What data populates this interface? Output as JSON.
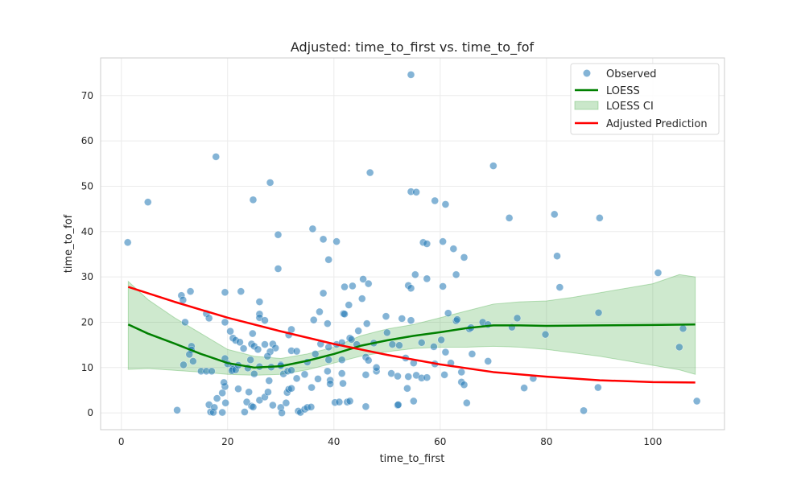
{
  "chart_data": {
    "type": "scatter",
    "title": "Adjusted: time_to_first vs. time_to_fof",
    "xlabel": "time_to_first",
    "ylabel": "time_to_fof",
    "xlim": [
      -3.9,
      113.5
    ],
    "ylim": [
      -3.7,
      78.3
    ],
    "xticks": [
      0,
      20,
      40,
      60,
      80,
      100
    ],
    "yticks": [
      0,
      10,
      20,
      30,
      40,
      50,
      60,
      70
    ],
    "grid": true,
    "legend_position": "top-right",
    "colors": {
      "observed": "#1f77b4",
      "loess": "#008000",
      "ci": "#2ca02c",
      "adjusted": "#ff0000"
    },
    "legend": [
      "Observed",
      "LOESS",
      "LOESS CI",
      "Adjusted Prediction"
    ],
    "observed": [
      [
        54.5,
        74.6
      ],
      [
        17.8,
        56.5
      ],
      [
        70,
        54.5
      ],
      [
        46.8,
        53
      ],
      [
        28,
        50.8
      ],
      [
        5,
        46.5
      ],
      [
        24.8,
        47
      ],
      [
        54.5,
        48.8
      ],
      [
        55.5,
        48.7
      ],
      [
        59,
        46.8
      ],
      [
        61,
        46
      ],
      [
        73,
        43
      ],
      [
        81.5,
        43.8
      ],
      [
        90,
        43
      ],
      [
        1.2,
        37.6
      ],
      [
        36,
        40.6
      ],
      [
        29.5,
        39.3
      ],
      [
        38,
        38.3
      ],
      [
        40.5,
        37.8
      ],
      [
        56.8,
        37.6
      ],
      [
        57.5,
        37.3
      ],
      [
        60.5,
        37.8
      ],
      [
        62.5,
        36.2
      ],
      [
        64.5,
        34.3
      ],
      [
        82,
        34.6
      ],
      [
        39,
        33.8
      ],
      [
        29.5,
        31.8
      ],
      [
        101,
        30.9
      ],
      [
        63,
        30.5
      ],
      [
        55.3,
        30.5
      ],
      [
        45.5,
        29.5
      ],
      [
        57.5,
        29.6
      ],
      [
        46.5,
        28.5
      ],
      [
        42,
        27.8
      ],
      [
        43.5,
        28
      ],
      [
        54,
        28.1
      ],
      [
        54.5,
        27.5
      ],
      [
        60.5,
        27.9
      ],
      [
        82.5,
        27.7
      ],
      [
        19.5,
        26.6
      ],
      [
        22.5,
        26.8
      ],
      [
        13,
        26.8
      ],
      [
        11.3,
        25.9
      ],
      [
        11.6,
        24.9
      ],
      [
        26,
        24.5
      ],
      [
        38,
        26.4
      ],
      [
        45.3,
        25.2
      ],
      [
        42.8,
        23.8
      ],
      [
        37.3,
        22.3
      ],
      [
        16,
        21.9
      ],
      [
        16.5,
        20.9
      ],
      [
        26,
        21.8
      ],
      [
        26,
        21
      ],
      [
        12,
        20
      ],
      [
        19.5,
        20
      ],
      [
        27,
        20.4
      ],
      [
        36.2,
        20.5
      ],
      [
        38.8,
        19.7
      ],
      [
        46.2,
        19.7
      ],
      [
        49.8,
        21.3
      ],
      [
        52.8,
        20.8
      ],
      [
        54.5,
        20.4
      ],
      [
        61.5,
        22
      ],
      [
        63,
        20.3
      ],
      [
        63.2,
        20.6
      ],
      [
        68,
        20
      ],
      [
        69,
        19.5
      ],
      [
        74.5,
        20.9
      ],
      [
        73.5,
        18.9
      ],
      [
        79.8,
        17.3
      ],
      [
        65.5,
        18.5
      ],
      [
        65.8,
        18.8
      ],
      [
        89.8,
        22.1
      ],
      [
        105.7,
        18.6
      ],
      [
        105,
        14.5
      ],
      [
        32,
        18.4
      ],
      [
        31.5,
        17.2
      ],
      [
        41.8,
        21.9
      ],
      [
        42,
        21.8
      ],
      [
        20.5,
        18
      ],
      [
        21,
        16.5
      ],
      [
        21.5,
        16
      ],
      [
        22.3,
        15.6
      ],
      [
        24.7,
        17.5
      ],
      [
        24.5,
        15.2
      ],
      [
        25,
        14.7
      ],
      [
        25.7,
        14
      ],
      [
        23,
        14.2
      ],
      [
        27,
        15.1
      ],
      [
        28.5,
        15.2
      ],
      [
        29,
        14.3
      ],
      [
        28,
        13.5
      ],
      [
        27.5,
        12.5
      ],
      [
        32,
        13.7
      ],
      [
        33,
        13.6
      ],
      [
        36.5,
        13
      ],
      [
        35,
        11.2
      ],
      [
        37.5,
        15.2
      ],
      [
        39,
        14.5
      ],
      [
        40.5,
        15.1
      ],
      [
        41.5,
        15.5
      ],
      [
        43,
        16.5
      ],
      [
        43.3,
        16.2
      ],
      [
        44.3,
        15.1
      ],
      [
        44.6,
        18.1
      ],
      [
        47.5,
        15.4
      ],
      [
        50,
        17.7
      ],
      [
        51,
        15.1
      ],
      [
        52.3,
        14.9
      ],
      [
        53.5,
        12.1
      ],
      [
        58.8,
        14.6
      ],
      [
        60.2,
        16.1
      ],
      [
        62,
        11
      ],
      [
        61,
        13.4
      ],
      [
        66,
        13
      ],
      [
        69,
        11.4
      ],
      [
        56.5,
        15.5
      ],
      [
        46,
        12.3
      ],
      [
        46.5,
        11.6
      ],
      [
        39,
        11.7
      ],
      [
        41.5,
        11.7
      ],
      [
        19.5,
        12
      ],
      [
        13.2,
        14.7
      ],
      [
        13.2,
        13.9
      ],
      [
        12.8,
        12.9
      ],
      [
        13.5,
        11.4
      ],
      [
        11.7,
        10.6
      ],
      [
        15,
        9.2
      ],
      [
        16,
        9.2
      ],
      [
        17,
        9.2
      ],
      [
        20,
        10.8
      ],
      [
        21,
        10.2
      ],
      [
        21,
        9.6
      ],
      [
        20.8,
        9.3
      ],
      [
        21.5,
        9.5
      ],
      [
        22,
        10.5
      ],
      [
        23.8,
        9.9
      ],
      [
        24.3,
        11.7
      ],
      [
        25,
        8.6
      ],
      [
        26,
        10.2
      ],
      [
        28.2,
        10.1
      ],
      [
        30,
        10.6
      ],
      [
        30,
        10.4
      ],
      [
        30.5,
        8.6
      ],
      [
        31.3,
        9.2
      ],
      [
        32,
        9.4
      ],
      [
        34.5,
        8.5
      ],
      [
        38.8,
        9.2
      ],
      [
        41.5,
        8.7
      ],
      [
        46,
        8.4
      ],
      [
        48,
        9.2
      ],
      [
        48,
        10
      ],
      [
        50.8,
        8.7
      ],
      [
        52,
        8.1
      ],
      [
        54,
        8
      ],
      [
        55,
        11
      ],
      [
        55.5,
        8.3
      ],
      [
        56.5,
        7.7
      ],
      [
        57.5,
        7.8
      ],
      [
        59,
        10.8
      ],
      [
        60.8,
        8.4
      ],
      [
        64,
        9
      ],
      [
        64,
        6.8
      ],
      [
        64.5,
        6.2
      ],
      [
        77.5,
        7.6
      ],
      [
        75.8,
        5.5
      ],
      [
        89.7,
        5.6
      ],
      [
        108.3,
        2.6
      ],
      [
        87,
        0.5
      ],
      [
        10.5,
        0.6
      ],
      [
        16.5,
        1.8
      ],
      [
        16.8,
        0.2
      ],
      [
        17.3,
        0.1
      ],
      [
        17.5,
        1.2
      ],
      [
        18,
        3.2
      ],
      [
        19,
        4.4
      ],
      [
        19.5,
        5.8
      ],
      [
        19.3,
        6.7
      ],
      [
        19,
        0.1
      ],
      [
        19.6,
        2.2
      ],
      [
        22,
        5.3
      ],
      [
        23.2,
        0.2
      ],
      [
        23.6,
        2.4
      ],
      [
        24,
        4.6
      ],
      [
        24.5,
        1.5
      ],
      [
        24.8,
        1.3
      ],
      [
        26,
        2.8
      ],
      [
        27,
        3.5
      ],
      [
        27.6,
        4.6
      ],
      [
        27.8,
        7.1
      ],
      [
        28.5,
        1.7
      ],
      [
        30,
        1.2
      ],
      [
        30.2,
        0
      ],
      [
        31,
        2.2
      ],
      [
        31.2,
        4.5
      ],
      [
        31.5,
        5.2
      ],
      [
        32,
        5.4
      ],
      [
        33,
        7.6
      ],
      [
        33.3,
        0.4
      ],
      [
        33.7,
        0.1
      ],
      [
        34.5,
        0.8
      ],
      [
        35,
        1.2
      ],
      [
        35.7,
        1.3
      ],
      [
        35.8,
        5.6
      ],
      [
        37,
        7.5
      ],
      [
        39.3,
        7.2
      ],
      [
        39.3,
        6.4
      ],
      [
        40.2,
        2.3
      ],
      [
        41,
        2.4
      ],
      [
        41.7,
        6.5
      ],
      [
        42.5,
        2.4
      ],
      [
        43,
        2.6
      ],
      [
        46,
        1.4
      ],
      [
        52,
        1.7
      ],
      [
        52.1,
        1.8
      ],
      [
        53.8,
        5.4
      ],
      [
        55,
        2.6
      ],
      [
        65,
        2.2
      ]
    ],
    "loess": [
      [
        1.3,
        19.5
      ],
      [
        5,
        17.5
      ],
      [
        10,
        15.3
      ],
      [
        15,
        13
      ],
      [
        20,
        11
      ],
      [
        25,
        10
      ],
      [
        30,
        10.3
      ],
      [
        35,
        11.5
      ],
      [
        40,
        13
      ],
      [
        45,
        14.8
      ],
      [
        50,
        16
      ],
      [
        55,
        17
      ],
      [
        60,
        17.8
      ],
      [
        65,
        18.7
      ],
      [
        70,
        19.3
      ],
      [
        75,
        19.3
      ],
      [
        80,
        19.2
      ],
      [
        90,
        19.3
      ],
      [
        100,
        19.4
      ],
      [
        108,
        19.5
      ]
    ],
    "loess_ci_upper": [
      [
        1.3,
        29
      ],
      [
        5,
        25
      ],
      [
        10,
        21
      ],
      [
        15,
        17.5
      ],
      [
        20,
        14
      ],
      [
        25,
        12.5
      ],
      [
        30,
        12
      ],
      [
        35,
        13
      ],
      [
        40,
        14.5
      ],
      [
        45,
        17
      ],
      [
        50,
        18.5
      ],
      [
        55,
        19.5
      ],
      [
        60,
        21
      ],
      [
        65,
        22.5
      ],
      [
        70,
        24
      ],
      [
        75,
        24.5
      ],
      [
        80,
        24.7
      ],
      [
        85,
        25.5
      ],
      [
        90,
        26.5
      ],
      [
        95,
        27.5
      ],
      [
        100,
        28.5
      ],
      [
        105,
        30.5
      ],
      [
        108,
        30
      ]
    ],
    "loess_ci_lower": [
      [
        1.3,
        9.6
      ],
      [
        5,
        9.8
      ],
      [
        10,
        9.4
      ],
      [
        15,
        9
      ],
      [
        20,
        8.5
      ],
      [
        25,
        8.3
      ],
      [
        30,
        8.5
      ],
      [
        35,
        9.5
      ],
      [
        40,
        11
      ],
      [
        45,
        12.5
      ],
      [
        50,
        13.5
      ],
      [
        55,
        14.2
      ],
      [
        60,
        14.5
      ],
      [
        65,
        14.5
      ],
      [
        70,
        14.7
      ],
      [
        75,
        14.5
      ],
      [
        80,
        14
      ],
      [
        90,
        12.5
      ],
      [
        100,
        10.5
      ],
      [
        105,
        9.5
      ],
      [
        108,
        8.5
      ]
    ],
    "adjusted_prediction": [
      [
        1.3,
        27.8
      ],
      [
        10,
        24.5
      ],
      [
        20,
        21
      ],
      [
        30,
        18
      ],
      [
        40,
        15.2
      ],
      [
        50,
        12.8
      ],
      [
        60,
        10.7
      ],
      [
        70,
        9
      ],
      [
        80,
        8
      ],
      [
        90,
        7.2
      ],
      [
        100,
        6.8
      ],
      [
        108,
        6.7
      ]
    ]
  }
}
